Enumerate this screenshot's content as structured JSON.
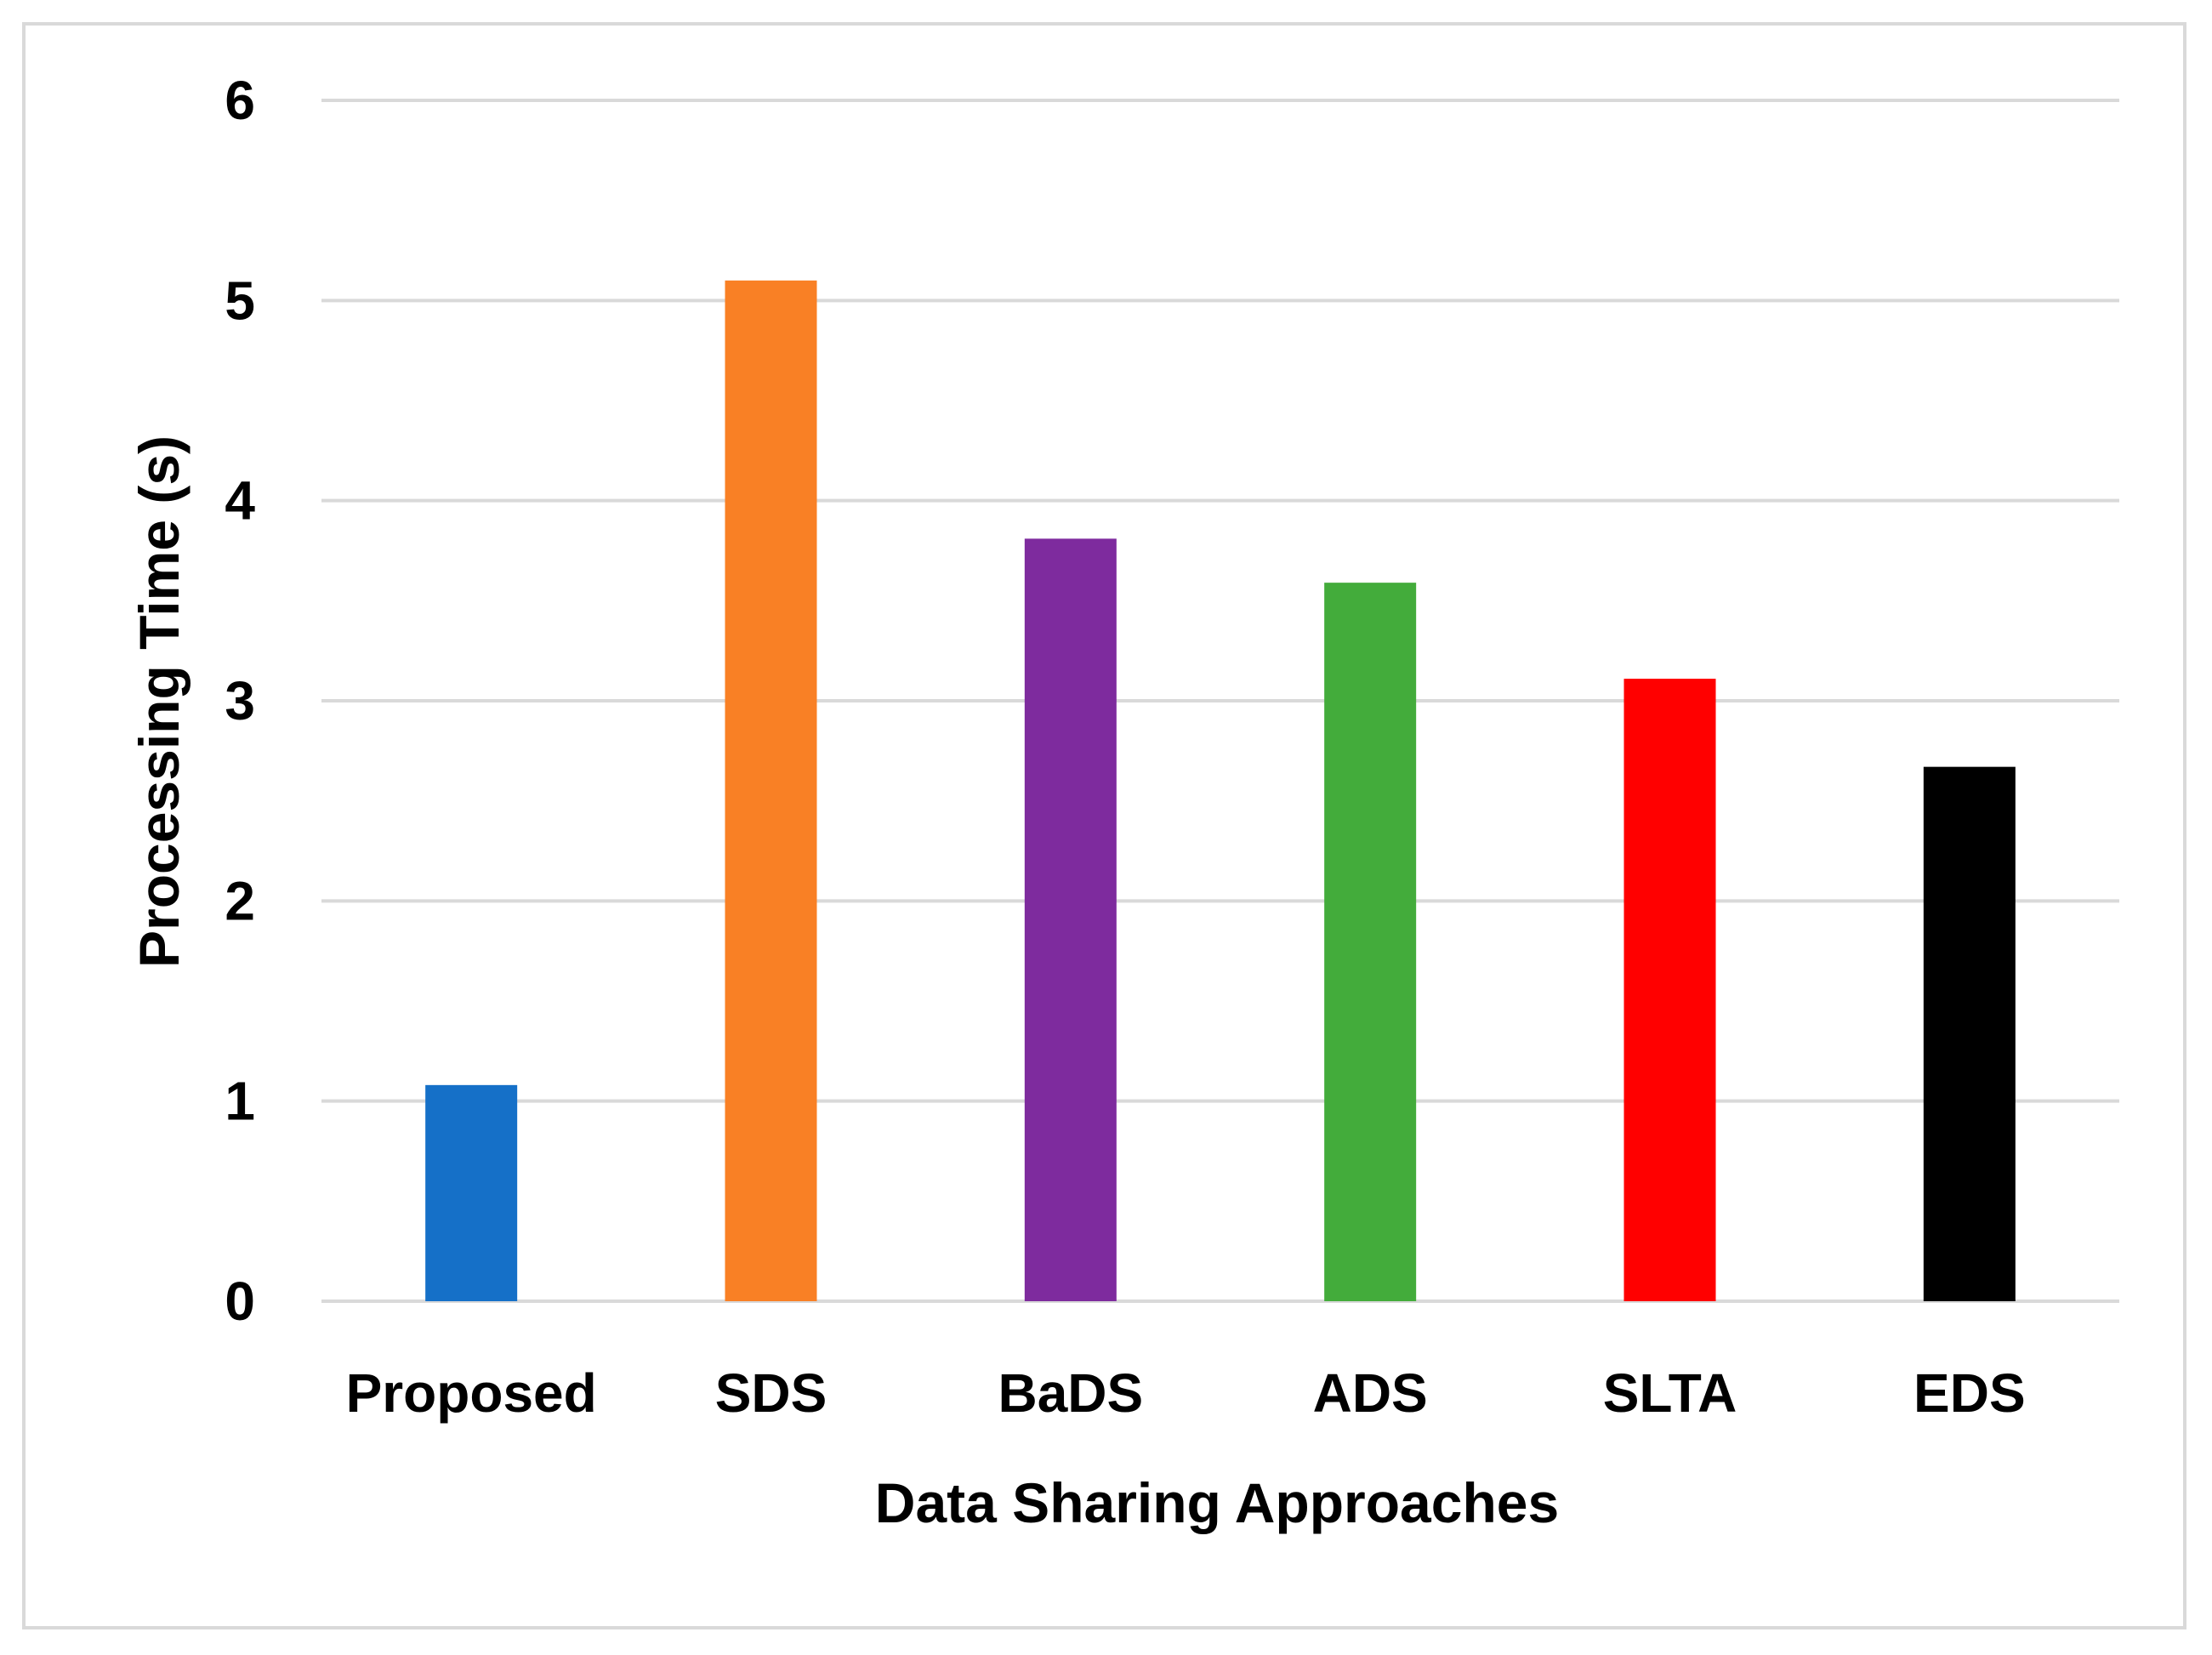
{
  "chart_data": {
    "type": "bar",
    "title": "",
    "xlabel": "Data Sharing Approaches",
    "ylabel": "Processing Time (s)",
    "categories": [
      "Proposed",
      "SDS",
      "BaDS",
      "ADS",
      "SLTA",
      "EDS"
    ],
    "values": [
      1.08,
      5.1,
      3.81,
      3.59,
      3.11,
      2.67
    ],
    "colors": [
      "#1570c8",
      "#f98025",
      "#7e2b9e",
      "#43ac3b",
      "#ff0000",
      "#000000"
    ],
    "ylim": [
      0,
      6
    ],
    "yticks": [
      "0",
      "1",
      "2",
      "3",
      "4",
      "5",
      "6"
    ],
    "grid": true,
    "legend": "none"
  }
}
